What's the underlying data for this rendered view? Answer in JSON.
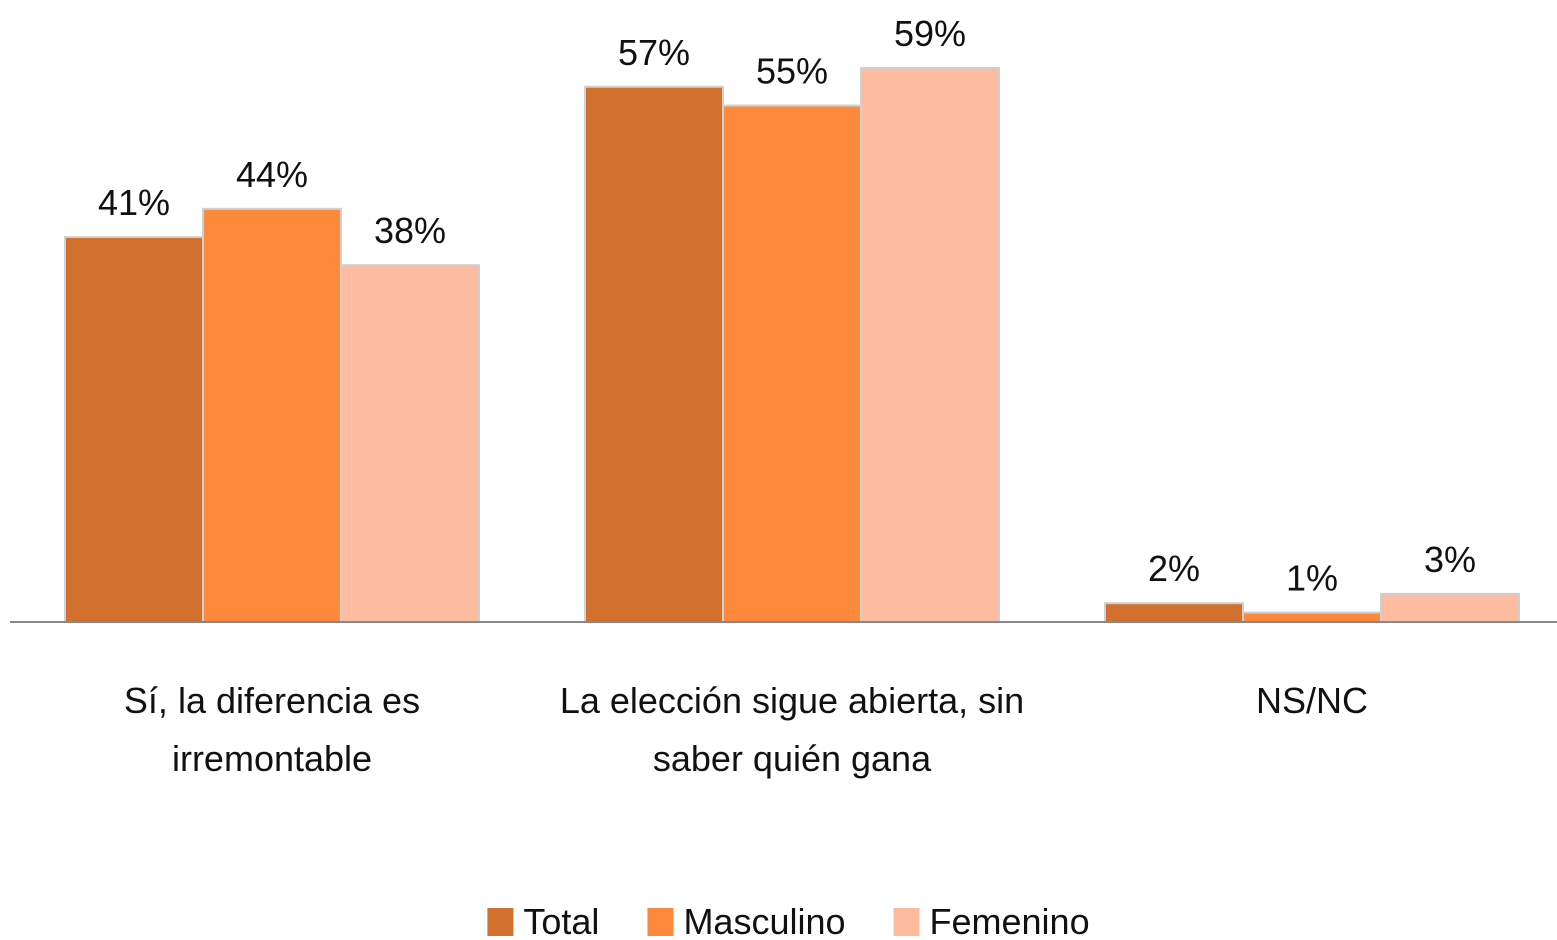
{
  "chart_data": {
    "type": "bar",
    "categories": [
      "Sí, la diferencia es irremontable",
      "La elección sigue abierta, sin saber quién gana",
      "NS/NC"
    ],
    "series": [
      {
        "name": "Total",
        "color": "#d2702e",
        "values": [
          41,
          57,
          2
        ],
        "value_labels": [
          "41%",
          "57%",
          "2%"
        ]
      },
      {
        "name": "Masculino",
        "color": "#fd8a3c",
        "values": [
          44,
          55,
          1
        ],
        "value_labels": [
          "44%",
          "55%",
          "1%"
        ]
      },
      {
        "name": "Femenino",
        "color": "#fdbba0",
        "values": [
          38,
          59,
          3
        ],
        "value_labels": [
          "38%",
          "59%",
          "3%"
        ]
      }
    ],
    "legend": "bottom"
  }
}
